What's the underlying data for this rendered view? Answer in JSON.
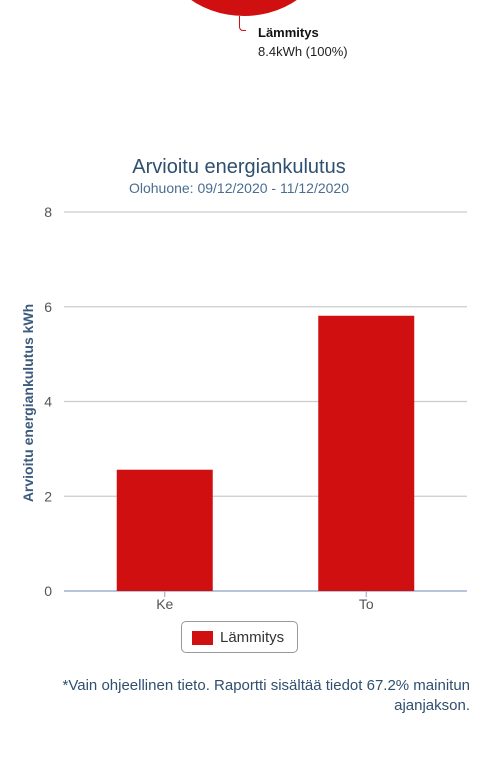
{
  "pie_legend": {
    "name": "Lämmitys",
    "value": "8.4kWh (100%)"
  },
  "chart_data": {
    "type": "bar",
    "title": "Arvioitu energiankulutus",
    "subtitle": "Olohuone: 09/12/2020 - 11/12/2020",
    "xlabel": "",
    "ylabel": "Arvioitu energiankulutus kWh",
    "categories": [
      "Ke",
      "To"
    ],
    "series": [
      {
        "name": "Lämmitys",
        "values": [
          2.56,
          5.81
        ]
      }
    ],
    "ylim": [
      0,
      8
    ],
    "yticks": [
      "0",
      "2",
      "4",
      "6",
      "8"
    ],
    "grid": true,
    "legend_position": "bottom",
    "colors": {
      "series": "#d01010",
      "grid": "#cccccc",
      "axis": "#a0b0d0"
    }
  },
  "footnote": "*Vain ohjeellinen tieto. Raportti sisältää tiedot 67.2% mainitun ajanjakson."
}
